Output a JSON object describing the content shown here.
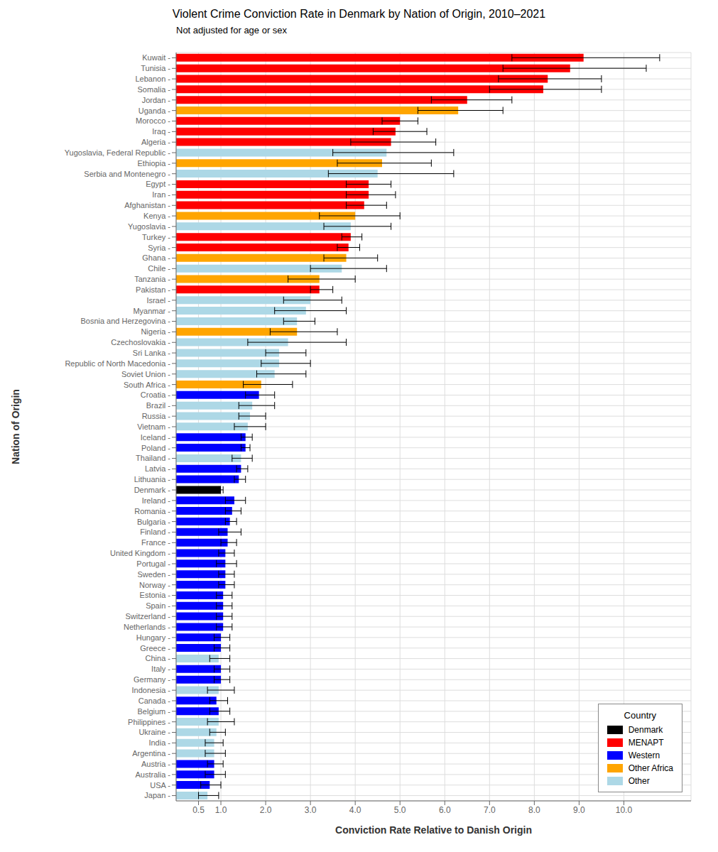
{
  "chart_data": {
    "type": "bar",
    "orientation": "horizontal",
    "title": "Violent Crime Conviction Rate in Denmark by Nation of Origin, 2010–2021",
    "subtitle": "Not adjusted for age or sex",
    "xlabel": "Conviction Rate Relative to Danish Origin",
    "ylabel": "Nation of Origin",
    "categories": [
      "Kuwait -",
      "Tunisia -",
      "Lebanon -",
      "Somalia -",
      "Jordan -",
      "Uganda -",
      "Morocco -",
      "Iraq -",
      "Algeria -",
      "Yugoslavia, Federal Republic -",
      "Ethiopia -",
      "Serbia and Montenegro -",
      "Egypt -",
      "Iran -",
      "Afghanistan -",
      "Kenya -",
      "Yugoslavia -",
      "Turkey -",
      "Syria -",
      "Ghana -",
      "Chile -",
      "Tanzania -",
      "Pakistan -",
      "Israel -",
      "Myanmar -",
      "Bosnia and Herzegovina -",
      "Nigeria -",
      "Czechoslovakia -",
      "Sri Lanka -",
      "Republic of North Macedonia -",
      "Soviet Union -",
      "South Africa -",
      "Croatia -",
      "Brazil -",
      "Russia -",
      "Vietnam -",
      "Iceland -",
      "Poland -",
      "Thailand -",
      "Latvia -",
      "Lithuania -",
      "Denmark -",
      "Ireland -",
      "Romania -",
      "Bulgaria -",
      "Finland -",
      "France -",
      "United Kingdom -",
      "Portugal -",
      "Sweden -",
      "Norway -",
      "Estonia -",
      "Spain -",
      "Switzerland -",
      "Netherlands -",
      "Hungary -",
      "Greece -",
      "China -",
      "Italy -",
      "Germany -",
      "Indonesia -",
      "Canada -",
      "Belgium -",
      "Philippines -",
      "Ukraine -",
      "India -",
      "Argentina -",
      "Austria -",
      "Australia -",
      "USA -",
      "Japan -"
    ],
    "values": [
      9.1,
      8.8,
      8.3,
      8.2,
      6.5,
      6.3,
      5.0,
      4.9,
      4.8,
      4.7,
      4.6,
      4.5,
      4.3,
      4.3,
      4.2,
      4.0,
      3.9,
      3.9,
      3.85,
      3.8,
      3.7,
      3.2,
      3.2,
      3.0,
      2.9,
      2.7,
      2.7,
      2.5,
      2.3,
      2.3,
      2.2,
      1.9,
      1.85,
      1.7,
      1.65,
      1.6,
      1.55,
      1.55,
      1.45,
      1.45,
      1.4,
      1.0,
      1.3,
      1.25,
      1.2,
      1.15,
      1.15,
      1.1,
      1.1,
      1.1,
      1.1,
      1.05,
      1.05,
      1.05,
      1.05,
      1.0,
      1.0,
      0.95,
      1.0,
      1.0,
      0.95,
      0.9,
      0.95,
      0.95,
      0.9,
      0.85,
      0.85,
      0.85,
      0.85,
      0.75,
      0.7
    ],
    "ci_low": [
      7.5,
      7.3,
      7.2,
      7.0,
      5.7,
      5.4,
      4.6,
      4.4,
      3.9,
      3.5,
      3.6,
      3.4,
      3.8,
      3.8,
      3.8,
      3.2,
      3.3,
      3.7,
      3.6,
      3.3,
      3.0,
      2.5,
      3.0,
      2.4,
      2.2,
      2.4,
      2.1,
      1.6,
      2.0,
      1.9,
      1.8,
      1.5,
      1.55,
      1.4,
      1.4,
      1.3,
      1.45,
      1.45,
      1.25,
      1.35,
      1.3,
      0.95,
      1.1,
      1.1,
      1.1,
      0.95,
      1.0,
      0.95,
      0.9,
      0.95,
      0.95,
      0.9,
      0.9,
      0.9,
      0.9,
      0.85,
      0.85,
      0.75,
      0.85,
      0.85,
      0.7,
      0.75,
      0.75,
      0.7,
      0.75,
      0.65,
      0.65,
      0.7,
      0.65,
      0.55,
      0.5
    ],
    "ci_high": [
      10.8,
      10.5,
      9.5,
      9.5,
      7.5,
      7.3,
      5.4,
      5.6,
      5.8,
      6.2,
      5.7,
      6.2,
      4.8,
      4.9,
      4.7,
      5.0,
      4.8,
      4.15,
      4.1,
      4.5,
      4.7,
      4.0,
      3.5,
      3.7,
      3.8,
      3.1,
      3.6,
      3.8,
      2.9,
      3.0,
      2.9,
      2.6,
      2.2,
      2.2,
      2.0,
      2.0,
      1.7,
      1.65,
      1.7,
      1.6,
      1.55,
      1.05,
      1.55,
      1.45,
      1.35,
      1.45,
      1.35,
      1.3,
      1.35,
      1.3,
      1.3,
      1.25,
      1.25,
      1.25,
      1.25,
      1.2,
      1.2,
      1.2,
      1.2,
      1.2,
      1.3,
      1.15,
      1.2,
      1.3,
      1.1,
      1.05,
      1.1,
      1.05,
      1.1,
      1.0,
      0.95
    ],
    "colors": [
      "#FF0000",
      "#FF0000",
      "#FF0000",
      "#FF0000",
      "#FF0000",
      "#FFA500",
      "#FF0000",
      "#FF0000",
      "#FF0000",
      "#ADD8E6",
      "#FFA500",
      "#ADD8E6",
      "#FF0000",
      "#FF0000",
      "#FF0000",
      "#FFA500",
      "#ADD8E6",
      "#FF0000",
      "#FF0000",
      "#FFA500",
      "#ADD8E6",
      "#FFA500",
      "#FF0000",
      "#ADD8E6",
      "#ADD8E6",
      "#ADD8E6",
      "#FFA500",
      "#ADD8E6",
      "#ADD8E6",
      "#ADD8E6",
      "#ADD8E6",
      "#FFA500",
      "#0000FF",
      "#ADD8E6",
      "#ADD8E6",
      "#ADD8E6",
      "#0000FF",
      "#0000FF",
      "#ADD8E6",
      "#0000FF",
      "#0000FF",
      "#000000",
      "#0000FF",
      "#0000FF",
      "#0000FF",
      "#0000FF",
      "#0000FF",
      "#0000FF",
      "#0000FF",
      "#0000FF",
      "#0000FF",
      "#0000FF",
      "#0000FF",
      "#0000FF",
      "#0000FF",
      "#0000FF",
      "#0000FF",
      "#ADD8E6",
      "#0000FF",
      "#0000FF",
      "#ADD8E6",
      "#0000FF",
      "#0000FF",
      "#ADD8E6",
      "#ADD8E6",
      "#ADD8E6",
      "#ADD8E6",
      "#0000FF",
      "#0000FF",
      "#0000FF",
      "#ADD8E6"
    ],
    "legend": "lower right",
    "legend_title": "Country",
    "legend_entries": [
      {
        "name": "Denmark",
        "color": "#000000"
      },
      {
        "name": "MENAPT",
        "color": "#FF0000"
      },
      {
        "name": "Western",
        "color": "#0000FF"
      },
      {
        "name": "Other Africa",
        "color": "#FFA500"
      },
      {
        "name": "Other",
        "color": "#ADD8E6"
      }
    ],
    "grid": true,
    "xlim": [
      0,
      11.5
    ],
    "xticks": [
      0.5,
      {
        "value": 1.0,
        "label": "1.0"
      },
      {
        "value": 2.0,
        "label": "2.0"
      },
      {
        "value": 3.0,
        "label": "3.0"
      },
      {
        "value": 4.0,
        "label": "4.0"
      },
      {
        "value": 5.0,
        "label": "5.0"
      },
      {
        "value": 6.0,
        "label": "6.0"
      },
      {
        "value": 7.0,
        "label": "7.0"
      },
      {
        "value": 8.0,
        "label": "8.0"
      },
      {
        "value": 9.0,
        "label": "9.0"
      },
      {
        "value": 10.0,
        "label": "10.0"
      }
    ]
  }
}
